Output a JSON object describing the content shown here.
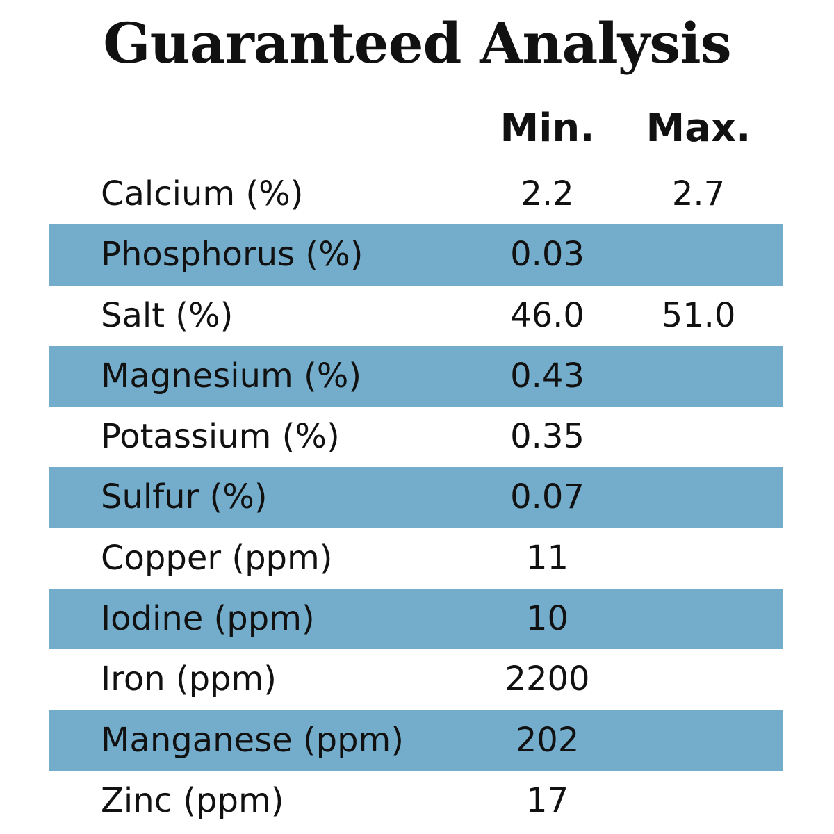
{
  "title": "Guaranteed Analysis",
  "columns": {
    "min": "Min.",
    "max": "Max."
  },
  "rows": [
    {
      "name": "Calcium (%)",
      "min": "2.2",
      "max": "2.7",
      "shaded": false
    },
    {
      "name": "Phosphorus (%)",
      "min": "0.03",
      "max": "",
      "shaded": true
    },
    {
      "name": "Salt (%)",
      "min": "46.0",
      "max": "51.0",
      "shaded": false
    },
    {
      "name": "Magnesium (%)",
      "min": "0.43",
      "max": "",
      "shaded": true
    },
    {
      "name": "Potassium (%)",
      "min": "0.35",
      "max": "",
      "shaded": false
    },
    {
      "name": "Sulfur (%)",
      "min": "0.07",
      "max": "",
      "shaded": true
    },
    {
      "name": "Copper (ppm)",
      "min": "11",
      "max": "",
      "shaded": false
    },
    {
      "name": "Iodine (ppm)",
      "min": "10",
      "max": "",
      "shaded": true
    },
    {
      "name": "Iron (ppm)",
      "min": "2200",
      "max": "",
      "shaded": false
    },
    {
      "name": "Manganese (ppm)",
      "min": "202",
      "max": "",
      "shaded": true
    },
    {
      "name": "Zinc (ppm)",
      "min": "17",
      "max": "",
      "shaded": false
    }
  ],
  "colors": {
    "row_shade": "#74adcb",
    "text": "#111111",
    "background": "#ffffff"
  }
}
